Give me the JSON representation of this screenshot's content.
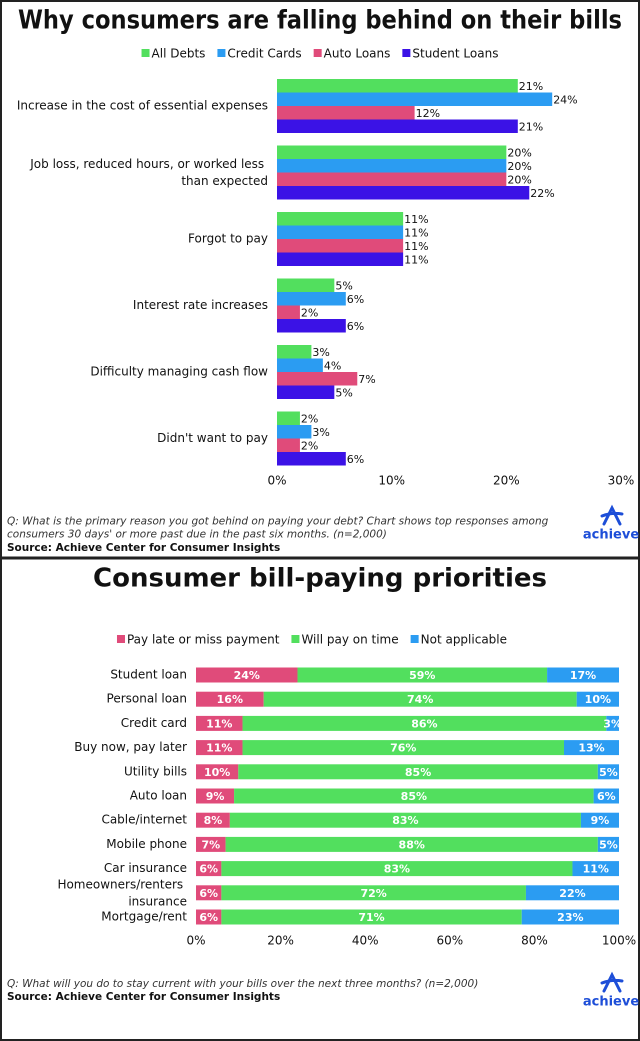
{
  "chart_data": [
    {
      "type": "bar",
      "title": "Why consumers are falling behind on their bills",
      "categories": [
        "Increase in the cost of essential expenses",
        "Job loss, reduced hours, or worked less than expected",
        "Forgot to pay",
        "Interest rate increases",
        "Difficulty managing cash flow",
        "Didn't want to pay"
      ],
      "series": [
        {
          "name": "All Debts",
          "color": "#52df5e",
          "values": [
            21,
            20,
            11,
            5,
            3,
            2
          ],
          "value_labels": [
            "21%",
            "20%",
            "11%",
            "5%",
            "3%",
            "2%"
          ]
        },
        {
          "name": "Credit Cards",
          "color": "#2b9cf2",
          "values": [
            24,
            20,
            11,
            6,
            4,
            3
          ],
          "value_labels": [
            "24%",
            "20%",
            "11%",
            "6%",
            "4%",
            "3%"
          ]
        },
        {
          "name": "Auto Loans",
          "color": "#e04b7a",
          "values": [
            12,
            20,
            11,
            2,
            7,
            2
          ],
          "value_labels": [
            "12%",
            "20%",
            "11%",
            "2%",
            "7%",
            "2%"
          ]
        },
        {
          "name": "Student Loans",
          "color": "#3b12e6",
          "values": [
            21,
            22,
            11,
            6,
            5,
            6
          ],
          "value_labels": [
            "21%",
            "22%",
            "11%",
            "6%",
            "5%",
            "6%"
          ]
        }
      ],
      "xlim": [
        0,
        30
      ],
      "xticks": [
        {
          "value": 0,
          "label": "0%"
        },
        {
          "value": 10,
          "label": "10%"
        },
        {
          "value": 20,
          "label": "20%"
        },
        {
          "value": 30,
          "label": "30%"
        }
      ],
      "note": "Q: What is the primary reason you got behind on paying your debt? Chart shows top responses among consumers 30 days' or more past due in the past six months. (n=2,000)",
      "source": "Source: Achieve Center for Consumer Insights",
      "logo": "achieve"
    },
    {
      "type": "stacked_bar",
      "title": "Consumer bill-paying priorities",
      "categories": [
        "Student loan",
        "Personal loan",
        "Credit card",
        "Buy now, pay later",
        "Utility bills",
        "Auto loan",
        "Cable/internet",
        "Mobile phone",
        "Car insurance",
        "Homeowners/renters insurance",
        "Mortgage/rent"
      ],
      "series": [
        {
          "name": "Pay late or miss payment",
          "color": "#e04b7a",
          "values": [
            24,
            16,
            11,
            11,
            10,
            9,
            8,
            7,
            6,
            6,
            6
          ],
          "value_labels": [
            "24%",
            "16%",
            "11%",
            "11%",
            "10%",
            "9%",
            "8%",
            "7%",
            "6%",
            "6%",
            "6%"
          ]
        },
        {
          "name": "Will pay on time",
          "color": "#52df5e",
          "values": [
            59,
            74,
            86,
            76,
            85,
            85,
            83,
            88,
            83,
            72,
            71
          ],
          "value_labels": [
            "59%",
            "74%",
            "86%",
            "76%",
            "85%",
            "85%",
            "83%",
            "88%",
            "83%",
            "72%",
            "71%"
          ]
        },
        {
          "name": "Not applicable",
          "color": "#2b9cf2",
          "values": [
            17,
            10,
            3,
            13,
            5,
            6,
            9,
            5,
            11,
            22,
            23
          ],
          "value_labels": [
            "17%",
            "10%",
            "3%",
            "13%",
            "5%",
            "6%",
            "9%",
            "5%",
            "11%",
            "22%",
            "23%"
          ]
        }
      ],
      "xlim": [
        0,
        100
      ],
      "xticks": [
        {
          "value": 0,
          "label": "0%"
        },
        {
          "value": 20,
          "label": "20%"
        },
        {
          "value": 40,
          "label": "40%"
        },
        {
          "value": 60,
          "label": "60%"
        },
        {
          "value": 80,
          "label": "80%"
        },
        {
          "value": 100,
          "label": "100%"
        }
      ],
      "note": "Q: What will you do to stay current with your bills over the next three months? (n=2,000)",
      "source": "Source: Achieve Center for Consumer Insights",
      "logo": "achieve"
    }
  ]
}
